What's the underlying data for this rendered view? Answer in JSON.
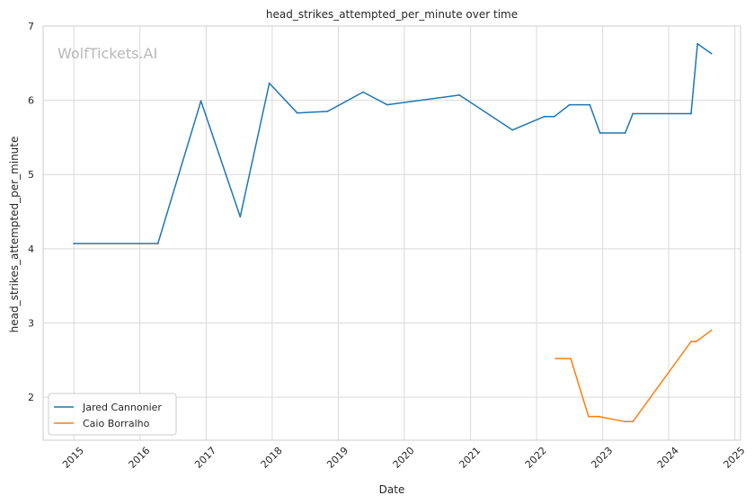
{
  "chart_data": {
    "type": "line",
    "title": "head_strikes_attempted_per_minute over time",
    "xlabel": "Date",
    "ylabel": "head_strikes_attempted_per_minute",
    "watermark": "WolfTickets.AI",
    "xlim": [
      "2014-07-15",
      "2025-02-01"
    ],
    "ylim": [
      1.42,
      7.0
    ],
    "x_ticks": [
      "2015",
      "2016",
      "2017",
      "2018",
      "2019",
      "2020",
      "2021",
      "2022",
      "2023",
      "2024",
      "2025"
    ],
    "y_ticks": [
      2,
      3,
      4,
      5,
      6,
      7
    ],
    "grid": true,
    "legend_position": "lower-left",
    "series": [
      {
        "name": "Jared Cannonier",
        "color": "#1f77b4",
        "points": [
          [
            "2015-01-01",
            4.07
          ],
          [
            "2016-04-09",
            4.07
          ],
          [
            "2016-12-03",
            5.99
          ],
          [
            "2017-07-08",
            4.43
          ],
          [
            "2017-12-16",
            6.23
          ],
          [
            "2018-05-19",
            5.83
          ],
          [
            "2018-11-03",
            5.85
          ],
          [
            "2019-05-18",
            6.11
          ],
          [
            "2019-09-28",
            5.94
          ],
          [
            "2020-10-31",
            6.07
          ],
          [
            "2021-08-21",
            5.6
          ],
          [
            "2022-02-12",
            5.78
          ],
          [
            "2022-04-09",
            5.78
          ],
          [
            "2022-07-02",
            5.94
          ],
          [
            "2022-10-22",
            5.94
          ],
          [
            "2022-12-17",
            5.56
          ],
          [
            "2023-05-06",
            5.56
          ],
          [
            "2023-06-17",
            5.82
          ],
          [
            "2024-05-04",
            5.82
          ],
          [
            "2024-06-08",
            6.76
          ],
          [
            "2024-08-24",
            6.63
          ]
        ]
      },
      {
        "name": "Caio Borralho",
        "color": "#ff7f0e",
        "points": [
          [
            "2022-04-16",
            2.52
          ],
          [
            "2022-07-09",
            2.52
          ],
          [
            "2022-10-15",
            1.74
          ],
          [
            "2022-12-10",
            1.74
          ],
          [
            "2023-05-06",
            1.67
          ],
          [
            "2023-06-17",
            1.67
          ],
          [
            "2024-05-04",
            2.75
          ],
          [
            "2024-06-01",
            2.75
          ],
          [
            "2024-08-24",
            2.9
          ]
        ]
      }
    ]
  }
}
